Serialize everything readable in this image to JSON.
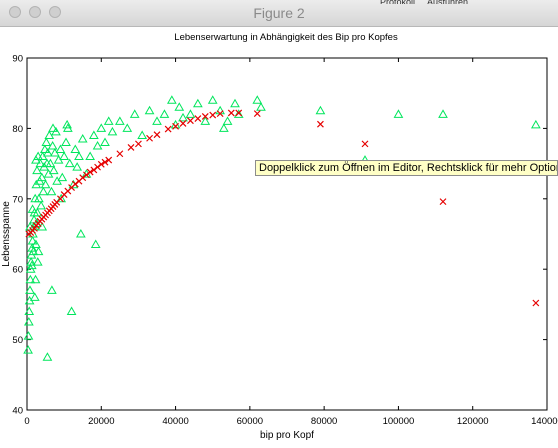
{
  "window": {
    "title": "Figure 2",
    "behind_text": "Protokoll ... Ausführen"
  },
  "tooltip": {
    "text": "Doppelklick zum Öffnen im Editor, Rechtsklick für mehr Optionen"
  },
  "colors": {
    "series_1": "#00e65c",
    "series_2": "#e60000",
    "axis": "#000000"
  },
  "chart_data": {
    "type": "scatter",
    "title": "Lebenserwartung in Abhängigkeit des Bip pro Kopfes",
    "xlabel": "bip pro Kopf",
    "ylabel": "Lebensspanne",
    "xlim": [
      0,
      140000
    ],
    "ylim": [
      40,
      90
    ],
    "xticks": [
      0,
      20000,
      40000,
      60000,
      80000,
      100000,
      120000,
      140000
    ],
    "yticks": [
      40,
      50,
      60,
      70,
      80,
      90
    ],
    "grid": false,
    "series": [
      {
        "marker": "triangle",
        "color": "#00e65c",
        "points": [
          [
            300,
            48.5
          ],
          [
            400,
            50.5
          ],
          [
            500,
            52.5
          ],
          [
            600,
            54
          ],
          [
            700,
            55.5
          ],
          [
            800,
            57
          ],
          [
            900,
            58.5
          ],
          [
            1000,
            60
          ],
          [
            1100,
            61
          ],
          [
            1200,
            62
          ],
          [
            1300,
            60.5
          ],
          [
            1400,
            63
          ],
          [
            1500,
            64
          ],
          [
            1600,
            65
          ],
          [
            1700,
            62.5
          ],
          [
            1800,
            66
          ],
          [
            1900,
            67
          ],
          [
            2000,
            68
          ],
          [
            2100,
            56
          ],
          [
            2200,
            70
          ],
          [
            2300,
            58.5
          ],
          [
            2400,
            63.5
          ],
          [
            2500,
            72
          ],
          [
            2600,
            66.5
          ],
          [
            2700,
            74
          ],
          [
            2800,
            68
          ],
          [
            2900,
            61
          ],
          [
            3000,
            76
          ],
          [
            3200,
            70
          ],
          [
            3400,
            72.5
          ],
          [
            3600,
            75
          ],
          [
            3800,
            69
          ],
          [
            4000,
            73
          ],
          [
            4200,
            76
          ],
          [
            4400,
            71
          ],
          [
            4600,
            74.5
          ],
          [
            4800,
            77
          ],
          [
            5000,
            72
          ],
          [
            5200,
            78
          ],
          [
            5400,
            75
          ],
          [
            5600,
            76.5
          ],
          [
            5800,
            73.5
          ],
          [
            6000,
            79
          ],
          [
            6300,
            75
          ],
          [
            6600,
            71
          ],
          [
            6900,
            77.5
          ],
          [
            7200,
            74
          ],
          [
            7500,
            76.5
          ],
          [
            7800,
            79.5
          ],
          [
            8100,
            72.5
          ],
          [
            8500,
            75.5
          ],
          [
            9000,
            77
          ],
          [
            9500,
            73
          ],
          [
            10000,
            76
          ],
          [
            10500,
            78
          ],
          [
            11000,
            80
          ],
          [
            11500,
            75
          ],
          [
            12000,
            54
          ],
          [
            12500,
            72
          ],
          [
            13000,
            77
          ],
          [
            13500,
            74.5
          ],
          [
            14000,
            76
          ],
          [
            15000,
            78.5
          ],
          [
            16000,
            73.5
          ],
          [
            17000,
            76
          ],
          [
            18000,
            79
          ],
          [
            19000,
            77.5
          ],
          [
            20000,
            80
          ],
          [
            21000,
            78
          ],
          [
            22000,
            81
          ],
          [
            23000,
            79.5
          ],
          [
            25000,
            81
          ],
          [
            27000,
            80
          ],
          [
            29000,
            82
          ],
          [
            31000,
            79
          ],
          [
            33000,
            82.5
          ],
          [
            35000,
            81
          ],
          [
            37000,
            82
          ],
          [
            39000,
            84
          ],
          [
            40000,
            80.5
          ],
          [
            41000,
            83
          ],
          [
            42000,
            81.5
          ],
          [
            44000,
            82
          ],
          [
            46000,
            83.5
          ],
          [
            48000,
            81
          ],
          [
            50000,
            84
          ],
          [
            52000,
            82.5
          ],
          [
            53000,
            80
          ],
          [
            54000,
            81
          ],
          [
            56000,
            83.5
          ],
          [
            57000,
            82
          ],
          [
            62000,
            84
          ],
          [
            63000,
            83
          ],
          [
            79000,
            82.5
          ],
          [
            91000,
            75.5
          ],
          [
            100000,
            82
          ],
          [
            112000,
            82
          ],
          [
            137000,
            80.5
          ],
          [
            7000,
            80
          ],
          [
            5500,
            47.5
          ],
          [
            800,
            66
          ],
          [
            1500,
            68.5
          ],
          [
            2400,
            75.5
          ],
          [
            3100,
            62.5
          ],
          [
            4100,
            66
          ],
          [
            6700,
            57
          ],
          [
            9200,
            70
          ],
          [
            10800,
            80.5
          ],
          [
            14500,
            65
          ],
          [
            18500,
            63.5
          ]
        ]
      },
      {
        "marker": "cross",
        "color": "#e60000",
        "points": [
          [
            500,
            65
          ],
          [
            1000,
            65.2
          ],
          [
            1500,
            65.5
          ],
          [
            2000,
            65.8
          ],
          [
            2500,
            66.2
          ],
          [
            3000,
            66.5
          ],
          [
            3500,
            66.8
          ],
          [
            4000,
            67.1
          ],
          [
            4500,
            67.4
          ],
          [
            5000,
            67.7
          ],
          [
            5500,
            68
          ],
          [
            6000,
            68.3
          ],
          [
            6500,
            68.6
          ],
          [
            7000,
            68.9
          ],
          [
            7500,
            69.2
          ],
          [
            8000,
            69.5
          ],
          [
            9000,
            70
          ],
          [
            10000,
            70.6
          ],
          [
            11000,
            71.1
          ],
          [
            12000,
            71.6
          ],
          [
            13000,
            72.1
          ],
          [
            14000,
            72.5
          ],
          [
            15000,
            73
          ],
          [
            16000,
            73.4
          ],
          [
            17000,
            73.8
          ],
          [
            18000,
            74.1
          ],
          [
            19000,
            74.5
          ],
          [
            20000,
            74.9
          ],
          [
            21000,
            75.2
          ],
          [
            22000,
            75.5
          ],
          [
            25000,
            76.4
          ],
          [
            28000,
            77.3
          ],
          [
            30000,
            77.8
          ],
          [
            33000,
            78.6
          ],
          [
            35000,
            79.1
          ],
          [
            38000,
            79.9
          ],
          [
            40000,
            80.3
          ],
          [
            42000,
            80.7
          ],
          [
            44000,
            81.1
          ],
          [
            46000,
            81.4
          ],
          [
            48000,
            81.7
          ],
          [
            50000,
            81.9
          ],
          [
            52000,
            82.1
          ],
          [
            55000,
            82.2
          ],
          [
            57000,
            82.2
          ],
          [
            62000,
            82.1
          ],
          [
            79000,
            80.6
          ],
          [
            91000,
            77.8
          ],
          [
            112000,
            69.6
          ],
          [
            137000,
            55.2
          ]
        ]
      }
    ]
  }
}
